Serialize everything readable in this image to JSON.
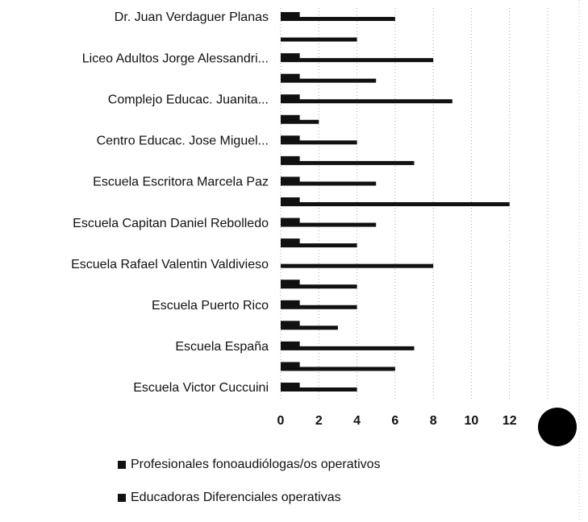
{
  "chart_data": {
    "type": "hbar",
    "categories": [
      "Dr. Juan Verdaguer Planas",
      null,
      "Liceo Adultos Jorge Alessandri...",
      null,
      "Complejo Educac. Juanita...",
      null,
      "Centro Educac. Jose Miguel...",
      null,
      "Escuela Escritora Marcela Paz",
      null,
      "Escuela Capitan Daniel Rebolledo",
      null,
      "Escuela Rafael Valentin Valdivieso",
      null,
      "Escuela Puerto Rico",
      null,
      "Escuela España",
      null,
      "Escuela Victor Cuccuini"
    ],
    "series": [
      {
        "name": "Profesionales fonoaudiólogas/os operativos",
        "color": "#111111",
        "values": [
          1,
          0,
          1,
          1,
          1,
          1,
          1,
          1,
          1,
          1,
          1,
          1,
          0,
          1,
          1,
          1,
          1,
          1,
          1
        ]
      },
      {
        "name": "Educadoras Diferenciales operativas",
        "color": "#111111",
        "values": [
          6,
          4,
          8,
          5,
          9,
          2,
          4,
          7,
          5,
          12,
          5,
          4,
          8,
          4,
          4,
          3,
          7,
          6,
          4
        ]
      }
    ],
    "xlim": [
      0,
      14
    ],
    "xticks": [
      0,
      2,
      4,
      6,
      8,
      10,
      12,
      14
    ],
    "grid": true,
    "legend": "bottom"
  }
}
